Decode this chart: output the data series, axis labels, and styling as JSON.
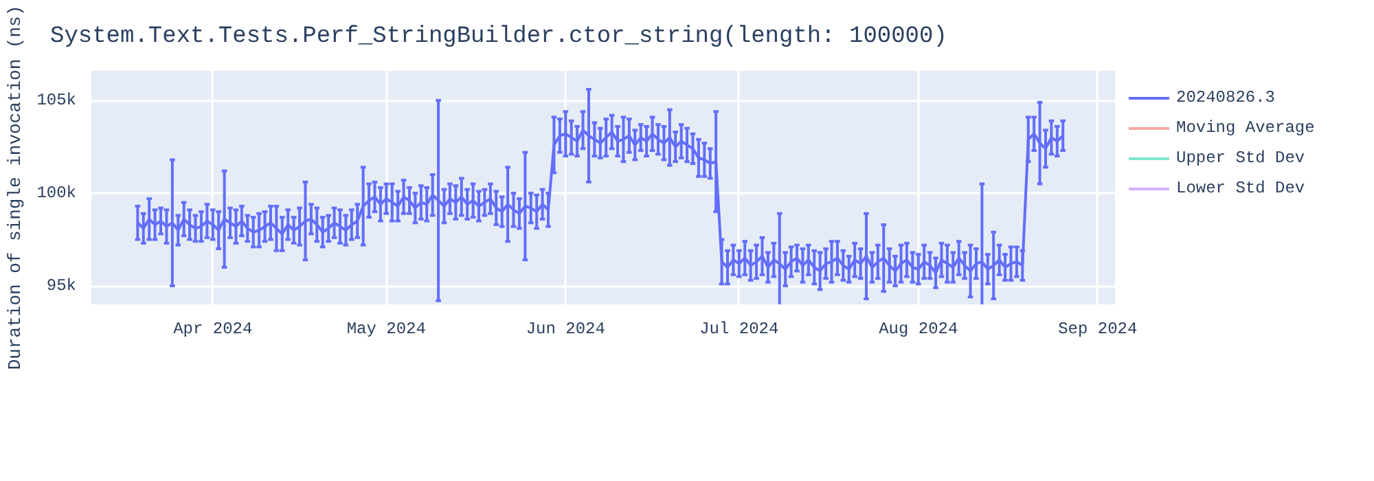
{
  "chart_data": {
    "type": "line",
    "title": "System.Text.Tests.Perf_StringBuilder.ctor_string(length: 100000)",
    "ylabel": "Duration of single invocation (ns)",
    "x": [
      "2024-03-19",
      "2024-03-20",
      "2024-03-21",
      "2024-03-22",
      "2024-03-23",
      "2024-03-24",
      "2024-03-25",
      "2024-03-26",
      "2024-03-27",
      "2024-03-28",
      "2024-03-29",
      "2024-03-30",
      "2024-03-31",
      "2024-04-01",
      "2024-04-02",
      "2024-04-03",
      "2024-04-04",
      "2024-04-05",
      "2024-04-06",
      "2024-04-07",
      "2024-04-08",
      "2024-04-09",
      "2024-04-10",
      "2024-04-11",
      "2024-04-12",
      "2024-04-13",
      "2024-04-14",
      "2024-04-15",
      "2024-04-16",
      "2024-04-17",
      "2024-04-18",
      "2024-04-19",
      "2024-04-20",
      "2024-04-21",
      "2024-04-22",
      "2024-04-23",
      "2024-04-24",
      "2024-04-25",
      "2024-04-26",
      "2024-04-27",
      "2024-04-28",
      "2024-04-29",
      "2024-04-30",
      "2024-05-01",
      "2024-05-02",
      "2024-05-03",
      "2024-05-04",
      "2024-05-05",
      "2024-05-06",
      "2024-05-07",
      "2024-05-08",
      "2024-05-09",
      "2024-05-10",
      "2024-05-11",
      "2024-05-12",
      "2024-05-13",
      "2024-05-14",
      "2024-05-15",
      "2024-05-16",
      "2024-05-17",
      "2024-05-18",
      "2024-05-19",
      "2024-05-20",
      "2024-05-21",
      "2024-05-22",
      "2024-05-23",
      "2024-05-24",
      "2024-05-25",
      "2024-05-26",
      "2024-05-27",
      "2024-05-28",
      "2024-05-29",
      "2024-05-30",
      "2024-05-31",
      "2024-06-01",
      "2024-06-02",
      "2024-06-03",
      "2024-06-04",
      "2024-06-05",
      "2024-06-06",
      "2024-06-07",
      "2024-06-08",
      "2024-06-09",
      "2024-06-10",
      "2024-06-11",
      "2024-06-12",
      "2024-06-13",
      "2024-06-14",
      "2024-06-15",
      "2024-06-16",
      "2024-06-17",
      "2024-06-18",
      "2024-06-19",
      "2024-06-20",
      "2024-06-21",
      "2024-06-22",
      "2024-06-23",
      "2024-06-24",
      "2024-06-25",
      "2024-06-26",
      "2024-06-27",
      "2024-06-28",
      "2024-06-29",
      "2024-06-30",
      "2024-07-01",
      "2024-07-02",
      "2024-07-03",
      "2024-07-04",
      "2024-07-05",
      "2024-07-06",
      "2024-07-07",
      "2024-07-08",
      "2024-07-09",
      "2024-07-10",
      "2024-07-11",
      "2024-07-12",
      "2024-07-13",
      "2024-07-14",
      "2024-07-15",
      "2024-07-16",
      "2024-07-17",
      "2024-07-18",
      "2024-07-19",
      "2024-07-20",
      "2024-07-21",
      "2024-07-22",
      "2024-07-23",
      "2024-07-24",
      "2024-07-25",
      "2024-07-26",
      "2024-07-27",
      "2024-07-28",
      "2024-07-29",
      "2024-07-30",
      "2024-07-31",
      "2024-08-01",
      "2024-08-02",
      "2024-08-03",
      "2024-08-04",
      "2024-08-05",
      "2024-08-06",
      "2024-08-07",
      "2024-08-08",
      "2024-08-09",
      "2024-08-10",
      "2024-08-11",
      "2024-08-12",
      "2024-08-13",
      "2024-08-14",
      "2024-08-15",
      "2024-08-16",
      "2024-08-17",
      "2024-08-18",
      "2024-08-19",
      "2024-08-20",
      "2024-08-21",
      "2024-08-22",
      "2024-08-23",
      "2024-08-24",
      "2024-08-25",
      "2024-08-26"
    ],
    "series": [
      {
        "name": "20240826.3",
        "color": "#636efa",
        "values": [
          98400,
          98100,
          98600,
          98300,
          98500,
          98200,
          98400,
          98000,
          98600,
          98300,
          98100,
          98200,
          98500,
          98300,
          98000,
          98600,
          98400,
          98200,
          98500,
          98100,
          97900,
          98000,
          98200,
          98400,
          98100,
          97800,
          98300,
          98000,
          98200,
          98500,
          98600,
          98300,
          97900,
          98100,
          98400,
          98200,
          98000,
          98300,
          98500,
          99300,
          99600,
          99800,
          99400,
          99700,
          99500,
          99300,
          99800,
          99600,
          99200,
          99500,
          99400,
          99900,
          99600,
          99300,
          99700,
          99500,
          99800,
          99400,
          99600,
          99300,
          99500,
          99700,
          99200,
          99000,
          99400,
          99100,
          98900,
          99300,
          99200,
          99000,
          99400,
          99100,
          102600,
          103100,
          103200,
          103000,
          102800,
          103400,
          103100,
          102900,
          102700,
          103000,
          103300,
          102800,
          102900,
          103100,
          102600,
          103000,
          102800,
          103200,
          102900,
          102700,
          103000,
          102500,
          102800,
          102600,
          102400,
          101900,
          101800,
          101600,
          101700,
          96300,
          96000,
          96400,
          96200,
          96500,
          96100,
          96300,
          96600,
          96000,
          96400,
          96200,
          95900,
          96300,
          96500,
          96100,
          96400,
          96000,
          95800,
          96200,
          96300,
          96500,
          96100,
          95900,
          96400,
          96200,
          96600,
          96000,
          96300,
          96500,
          96100,
          95800,
          96200,
          96400,
          96000,
          95900,
          96300,
          96100,
          95700,
          96400,
          96200,
          96000,
          96500,
          96100,
          95800,
          96200,
          96300,
          95900,
          96100,
          96400,
          96000,
          96200,
          96300,
          96100,
          102900,
          103200,
          102700,
          102400,
          103000,
          102800,
          103100
        ],
        "errors": [
          900,
          800,
          1100,
          800,
          700,
          900,
          3400,
          800,
          900,
          800,
          700,
          800,
          900,
          800,
          1000,
          2600,
          800,
          900,
          800,
          700,
          800,
          900,
          800,
          900,
          1200,
          900,
          800,
          700,
          1000,
          2100,
          800,
          900,
          800,
          700,
          800,
          900,
          800,
          800,
          900,
          2100,
          900,
          800,
          900,
          800,
          1000,
          800,
          900,
          700,
          800,
          900,
          900,
          1100,
          5400,
          900,
          800,
          900,
          1000,
          800,
          900,
          800,
          700,
          800,
          900,
          800,
          2000,
          900,
          800,
          2900,
          800,
          900,
          800,
          900,
          1500,
          900,
          1200,
          900,
          800,
          1000,
          2500,
          900,
          800,
          1000,
          900,
          800,
          1200,
          900,
          800,
          700,
          800,
          900,
          800,
          900,
          1500,
          800,
          900,
          900,
          800,
          1000,
          900,
          800,
          2700,
          1200,
          900,
          800,
          700,
          900,
          800,
          900,
          1000,
          800,
          900,
          2700,
          900,
          800,
          700,
          900,
          800,
          900,
          1000,
          800,
          1100,
          900,
          800,
          700,
          900,
          800,
          2300,
          800,
          900,
          1800,
          900,
          800,
          1000,
          900,
          800,
          800,
          900,
          700,
          800,
          900,
          1000,
          800,
          900,
          700,
          1400,
          800,
          4200,
          800,
          1800,
          800,
          700,
          900,
          800,
          800,
          1200,
          900,
          2200,
          1000,
          900,
          800,
          800
        ]
      },
      {
        "name": "Moving Average",
        "color": "#f7aa9d",
        "values": [
          null,
          null,
          null,
          null,
          null,
          null,
          null,
          null,
          null,
          null,
          null,
          null,
          null,
          null,
          null,
          null,
          null,
          null,
          null,
          null,
          null,
          null,
          null,
          null,
          null,
          null,
          null,
          null,
          null,
          null,
          null,
          null,
          null,
          null,
          null,
          null,
          null,
          null,
          null,
          null,
          null,
          null,
          null,
          null,
          null,
          null,
          null,
          null,
          null,
          null,
          null,
          null,
          null,
          null,
          null,
          null,
          null,
          null,
          null,
          null,
          null,
          null,
          null,
          null,
          null,
          null,
          null,
          null,
          null,
          null,
          null,
          null,
          null,
          null,
          null,
          null,
          null,
          null,
          null,
          null,
          null,
          null,
          null,
          null,
          null,
          null,
          null,
          null,
          null,
          null,
          null,
          null,
          null,
          null,
          null,
          null,
          null,
          null,
          null,
          null,
          null,
          null,
          null,
          null,
          null,
          null,
          null,
          null,
          null,
          null,
          null,
          null,
          null,
          null,
          null,
          null,
          null,
          null,
          null,
          null,
          null,
          null,
          null,
          null,
          null,
          null,
          null,
          null,
          null,
          null,
          null,
          null,
          null,
          null,
          null,
          null,
          null,
          null,
          null,
          null,
          null,
          null,
          null,
          null,
          null,
          null,
          null,
          null,
          null,
          null,
          null,
          null,
          null,
          null,
          null,
          null,
          null,
          null,
          null,
          null,
          null
        ]
      },
      {
        "name": "Upper Std Dev",
        "color": "#7fe5ca",
        "values": [
          null,
          null,
          null,
          null,
          null,
          null,
          null,
          null,
          null,
          null,
          null,
          null,
          null,
          null,
          null,
          null,
          null,
          null,
          null,
          null,
          null,
          null,
          null,
          null,
          null,
          null,
          null,
          null,
          null,
          null,
          null,
          null,
          null,
          null,
          null,
          null,
          null,
          null,
          null,
          null,
          null,
          null,
          null,
          null,
          null,
          null,
          null,
          null,
          null,
          null,
          null,
          null,
          null,
          null,
          null,
          null,
          null,
          null,
          null,
          null,
          null,
          null,
          null,
          null,
          null,
          null,
          null,
          null,
          null,
          null,
          null,
          null,
          null,
          null,
          null,
          null,
          null,
          null,
          null,
          null,
          null,
          null,
          null,
          null,
          null,
          null,
          null,
          null,
          null,
          null,
          null,
          null,
          null,
          null,
          null,
          null,
          null,
          null,
          null,
          null,
          null,
          null,
          null,
          null,
          null,
          null,
          null,
          null,
          null,
          null,
          null,
          null,
          null,
          null,
          null,
          null,
          null,
          null,
          null,
          null,
          null,
          null,
          null,
          null,
          null,
          null,
          null,
          null,
          null,
          null,
          null,
          null,
          null,
          null,
          null,
          null,
          null,
          null,
          null,
          null,
          null,
          null,
          null,
          null,
          null,
          null,
          null,
          null,
          null,
          null,
          null,
          null,
          null,
          null,
          null,
          null,
          null,
          null,
          null,
          null,
          null
        ]
      },
      {
        "name": "Lower Std Dev",
        "color": "#d5b1fc",
        "values": [
          null,
          null,
          null,
          null,
          null,
          null,
          null,
          null,
          null,
          null,
          null,
          null,
          null,
          null,
          null,
          null,
          null,
          null,
          null,
          null,
          null,
          null,
          null,
          null,
          null,
          null,
          null,
          null,
          null,
          null,
          null,
          null,
          null,
          null,
          null,
          null,
          null,
          null,
          null,
          null,
          null,
          null,
          null,
          null,
          null,
          null,
          null,
          null,
          null,
          null,
          null,
          null,
          null,
          null,
          null,
          null,
          null,
          null,
          null,
          null,
          null,
          null,
          null,
          null,
          null,
          null,
          null,
          null,
          null,
          null,
          null,
          null,
          null,
          null,
          null,
          null,
          null,
          null,
          null,
          null,
          null,
          null,
          null,
          null,
          null,
          null,
          null,
          null,
          null,
          null,
          null,
          null,
          null,
          null,
          null,
          null,
          null,
          null,
          null,
          null,
          null,
          null,
          null,
          null,
          null,
          null,
          null,
          null,
          null,
          null,
          null,
          null,
          null,
          null,
          null,
          null,
          null,
          null,
          null,
          null,
          null,
          null,
          null,
          null,
          null,
          null,
          null,
          null,
          null,
          null,
          null,
          null,
          null,
          null,
          null,
          null,
          null,
          null,
          null,
          null,
          null,
          null,
          null,
          null,
          null,
          null,
          null,
          null,
          null,
          null,
          null,
          null,
          null,
          null,
          null,
          null,
          null,
          null,
          null,
          null,
          null
        ]
      }
    ],
    "xlim": [
      "2024-03-11",
      "2024-09-04"
    ],
    "xticks": [
      {
        "value": "2024-04-01",
        "label": "Apr 2024"
      },
      {
        "value": "2024-05-01",
        "label": "May 2024"
      },
      {
        "value": "2024-06-01",
        "label": "Jun 2024"
      },
      {
        "value": "2024-07-01",
        "label": "Jul 2024"
      },
      {
        "value": "2024-08-01",
        "label": "Aug 2024"
      },
      {
        "value": "2024-09-01",
        "label": "Sep 2024"
      }
    ],
    "ylim": [
      94000,
      106600
    ],
    "yticks": [
      {
        "value": 95000,
        "label": "95k"
      },
      {
        "value": 100000,
        "label": "100k"
      },
      {
        "value": 105000,
        "label": "105k"
      }
    ],
    "grid": true,
    "legend": "right",
    "marker": "none",
    "line_style": "solid"
  }
}
